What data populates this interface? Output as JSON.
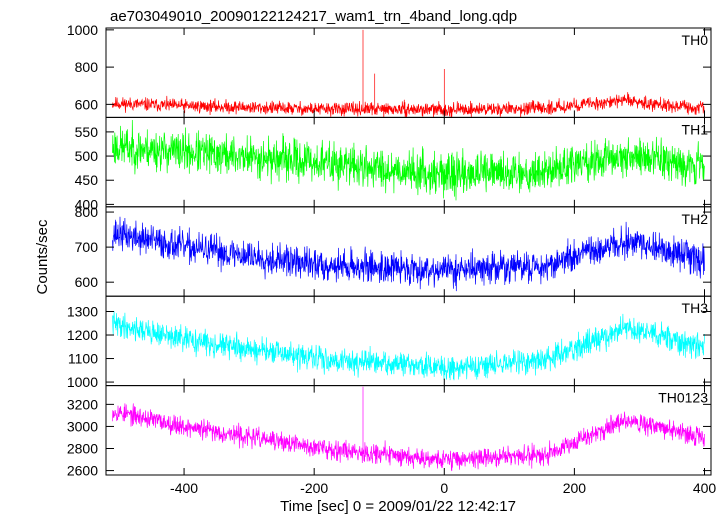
{
  "chart_data": {
    "type": "line",
    "title": "ae703049010_20090122124217_wam1_trn_4band_long.qdp",
    "xlabel": "Time [sec] 0 = 2009/01/22 12:42:17",
    "ylabel": "Counts/sec",
    "xlim": [
      -520,
      410
    ],
    "xticks": [
      -400,
      -200,
      0,
      200,
      400
    ],
    "panels": [
      {
        "name": "TH0",
        "color": "#ff0000",
        "ylim": [
          530,
          1010
        ],
        "yticks": [
          600,
          800,
          1000
        ],
        "noise": 22,
        "seed": 11,
        "trend": [
          [
            -510,
            605
          ],
          [
            -400,
            592
          ],
          [
            -200,
            575
          ],
          [
            0,
            572
          ],
          [
            150,
            578
          ],
          [
            280,
            622
          ],
          [
            400,
            572
          ]
        ],
        "spikes": [
          [
            -125,
            1000
          ],
          [
            -107,
            765
          ],
          [
            0,
            790
          ]
        ]
      },
      {
        "name": "TH1",
        "color": "#00ff00",
        "ylim": [
          395,
          580
        ],
        "yticks": [
          400,
          450,
          500,
          550
        ],
        "noise": 26,
        "seed": 23,
        "trend": [
          [
            -510,
            520
          ],
          [
            -400,
            508
          ],
          [
            -200,
            488
          ],
          [
            0,
            462
          ],
          [
            150,
            468
          ],
          [
            280,
            502
          ],
          [
            400,
            482
          ]
        ],
        "spikes": []
      },
      {
        "name": "TH2",
        "color": "#0000ff",
        "ylim": [
          560,
          815
        ],
        "yticks": [
          600,
          700,
          800
        ],
        "noise": 28,
        "seed": 37,
        "trend": [
          [
            -510,
            740
          ],
          [
            -400,
            700
          ],
          [
            -200,
            650
          ],
          [
            0,
            635
          ],
          [
            150,
            645
          ],
          [
            280,
            715
          ],
          [
            400,
            665
          ]
        ],
        "spikes": []
      },
      {
        "name": "TH3",
        "color": "#00ffff",
        "ylim": [
          985,
          1365
        ],
        "yticks": [
          1000,
          1100,
          1200,
          1300
        ],
        "noise": 32,
        "seed": 41,
        "trend": [
          [
            -510,
            1250
          ],
          [
            -400,
            1180
          ],
          [
            -200,
            1100
          ],
          [
            0,
            1060
          ],
          [
            150,
            1090
          ],
          [
            280,
            1230
          ],
          [
            400,
            1150
          ]
        ],
        "spikes": []
      },
      {
        "name": "TH0123",
        "color": "#ff00ff",
        "ylim": [
          2560,
          3370
        ],
        "yticks": [
          2600,
          2800,
          3000,
          3200
        ],
        "noise": 55,
        "seed": 53,
        "trend": [
          [
            -510,
            3140
          ],
          [
            -400,
            3000
          ],
          [
            -200,
            2810
          ],
          [
            0,
            2700
          ],
          [
            150,
            2740
          ],
          [
            280,
            3060
          ],
          [
            400,
            2890
          ]
        ],
        "spikes": [
          [
            -125,
            3360
          ]
        ]
      }
    ]
  }
}
